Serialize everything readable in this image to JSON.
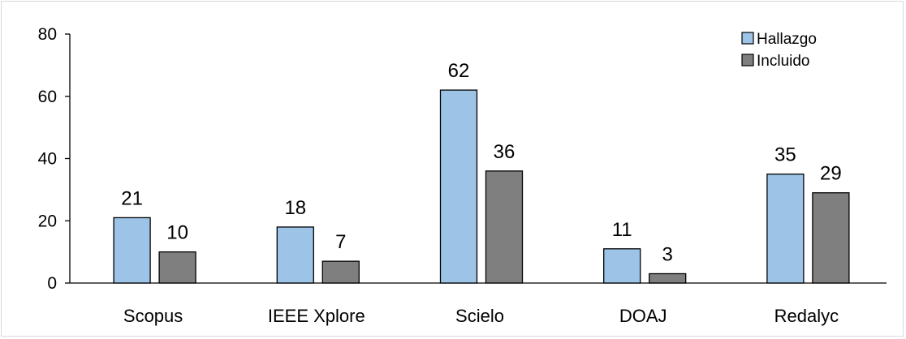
{
  "chart_data": {
    "type": "bar",
    "categories": [
      "Scopus",
      "IEEE Xplore",
      "Scielo",
      "DOAJ",
      "Redalyc"
    ],
    "series": [
      {
        "name": "Hallazgo",
        "values": [
          21,
          18,
          62,
          11,
          35
        ],
        "color": "#9DC3E6"
      },
      {
        "name": "Incluido",
        "values": [
          10,
          7,
          36,
          3,
          29
        ],
        "color": "#7F7F7F"
      }
    ],
    "ylim": [
      0,
      80
    ],
    "yticks": [
      0,
      20,
      40,
      60,
      80
    ],
    "grid": false,
    "data_labels": true,
    "legend_position": "top-right",
    "bar_border_color": "#000000",
    "axis_color": "#000000"
  }
}
